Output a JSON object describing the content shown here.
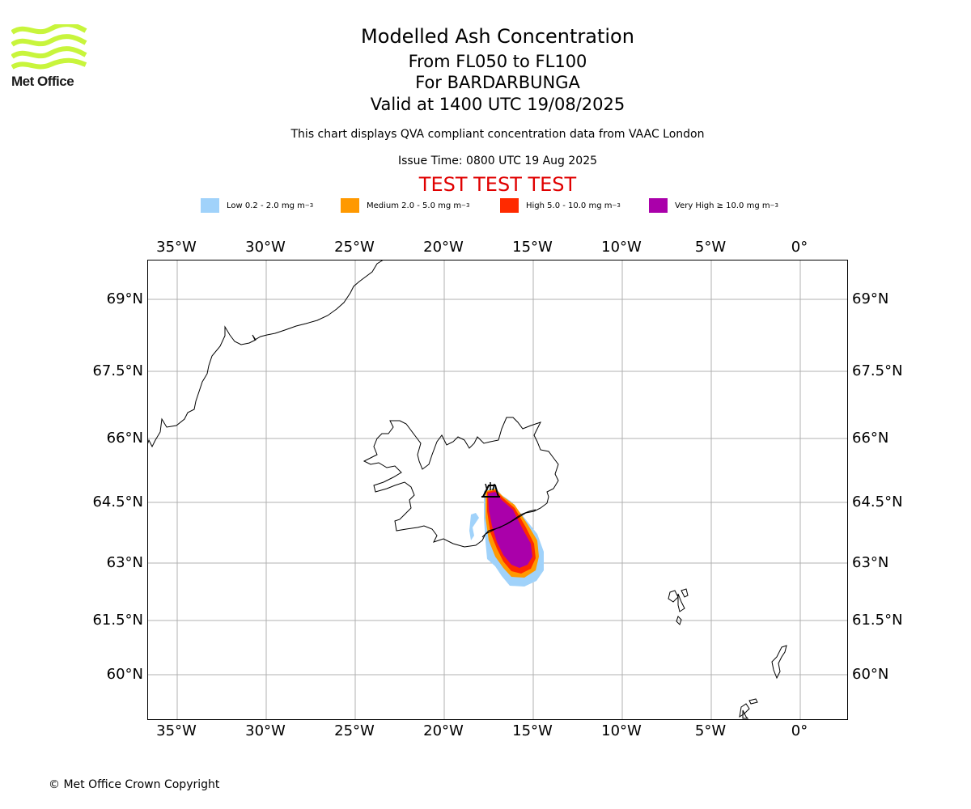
{
  "logo": {
    "text": "Met Office",
    "color": "#c8f53c"
  },
  "header": {
    "title": "Modelled Ash Concentration",
    "level_range": "From FL050 to FL100",
    "volcano": "For BARDARBUNGA",
    "valid_time": "Valid at 1400 UTC 19/08/2025",
    "info": "This chart displays QVA compliant concentration data from VAAC London",
    "issue_time": "Issue Time: 0800 UTC 19 Aug 2025",
    "test_banner": "TEST TEST TEST"
  },
  "legend": [
    {
      "label": "Low 0.2 - 2.0 mg m",
      "unit_exp": "−3",
      "color": "#a0d2fa"
    },
    {
      "label": "Medium 2.0 - 5.0 mg m",
      "unit_exp": "−3",
      "color": "#ff9900"
    },
    {
      "label": "High 5.0 - 10.0 mg m",
      "unit_exp": "−3",
      "color": "#ff2a00"
    },
    {
      "label": "Very High ≥ 10.0 mg m",
      "unit_exp": "−3",
      "color": "#aa00aa"
    }
  ],
  "map": {
    "lon_range": [
      -36.7,
      2.6
    ],
    "lat_range": [
      58.95,
      69.85
    ],
    "gridlines": true,
    "lon_ticks": [
      "35°W",
      "30°W",
      "25°W",
      "20°W",
      "15°W",
      "10°W",
      "5°W",
      "0°"
    ],
    "lat_ticks": [
      "69°N",
      "67.5°N",
      "66°N",
      "64.5°N",
      "63°N",
      "61.5°N",
      "60°N"
    ],
    "volcano_marker": "volcano-icon"
  },
  "footer": {
    "copyright": "© Met Office Crown Copyright"
  }
}
